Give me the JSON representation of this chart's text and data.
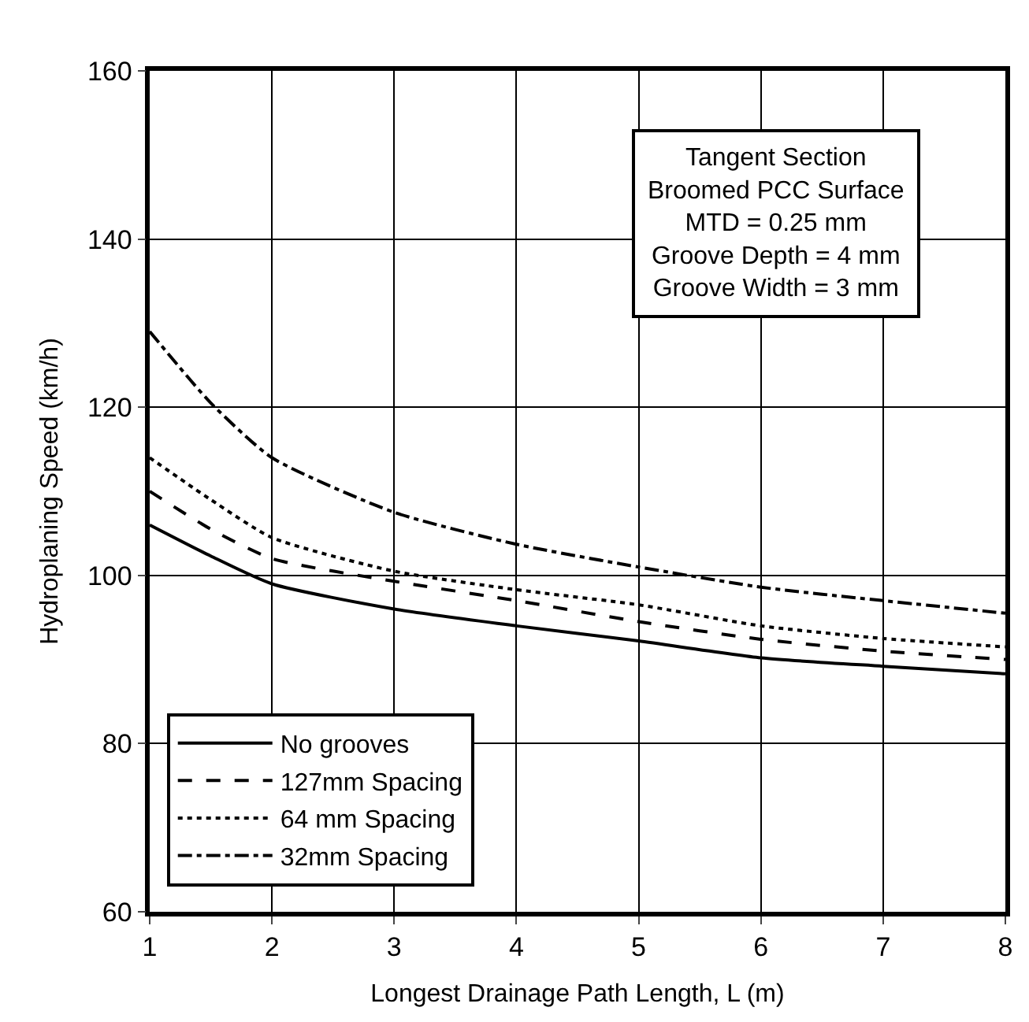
{
  "chart_data": {
    "type": "line",
    "xlabel": "Longest Drainage Path Length, L (m)",
    "ylabel": "Hydroplaning Speed (km/h)",
    "x": [
      1,
      1.5,
      2,
      3,
      4,
      5,
      6,
      7,
      8
    ],
    "series": [
      {
        "name": "No grooves",
        "color": "#000000",
        "line_style": "solid",
        "values": [
          106,
          102.3,
          99,
          96,
          94,
          92.2,
          90.2,
          89.2,
          88.3
        ]
      },
      {
        "name": "127mm Spacing",
        "color": "#000000",
        "line_style": "dashed",
        "values": [
          110,
          105.5,
          102,
          99.3,
          97,
          94.5,
          92.4,
          91,
          90
        ]
      },
      {
        "name": "64 mm Spacing",
        "color": "#000000",
        "line_style": "dotted",
        "values": [
          114,
          109,
          104.5,
          100.5,
          98.3,
          96.5,
          94,
          92.5,
          91.5
        ]
      },
      {
        "name": "32mm Spacing",
        "color": "#000000",
        "line_style": "dashdot",
        "values": [
          129,
          120.5,
          114,
          107.5,
          103.7,
          101,
          98.6,
          97,
          95.5
        ]
      }
    ],
    "annotations": [
      "Tangent Section\nBroomed PCC Surface\nMTD = 0.25 mm\nGroove Depth = 4 mm\nGroove Width = 3 mm"
    ],
    "xlim": [
      1,
      8
    ],
    "xticks": [
      1,
      2,
      3,
      4,
      5,
      6,
      7,
      8
    ],
    "ylim": [
      60,
      160
    ],
    "yticks": [
      60,
      80,
      100,
      120,
      140,
      160
    ],
    "grid": true,
    "legend": "bottom left",
    "marker": "none"
  }
}
